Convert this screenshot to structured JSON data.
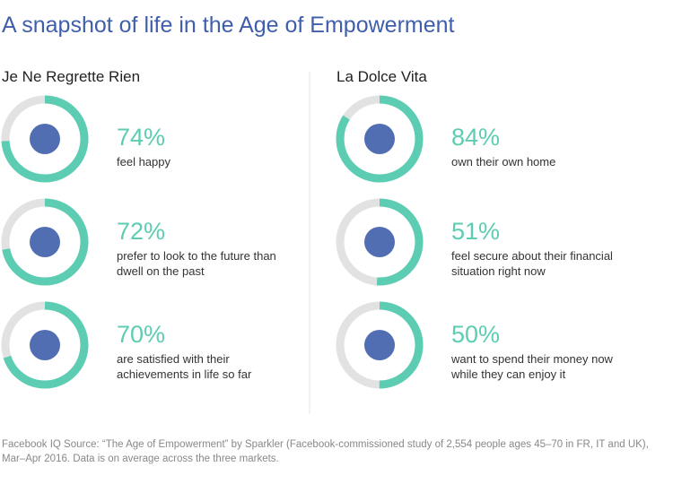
{
  "title": "A snapshot of life in the Age of Empowerment",
  "source": "Facebook IQ Source: “The Age of Empowerment” by Sparkler (Facebook-commissioned study of 2,554 people ages 45–70 in FR, IT and UK), Mar–Apr 2016. Data is on average across the three markets.",
  "chart_data": [
    {
      "type": "donut",
      "title": "Je Ne Regrette Rien",
      "categories": [
        "feel happy",
        "prefer to look to the future than dwell on the past",
        "are satisfied with their achievements in life so far"
      ],
      "values": [
        74,
        72,
        70
      ],
      "value_labels": [
        "74%",
        "72%",
        "70%"
      ],
      "color": "#5ccdb2",
      "track_color": "#e2e2e2"
    },
    {
      "type": "donut",
      "title": "La Dolce Vita",
      "categories": [
        "own their own home",
        "feel secure about their financial situation right now",
        "want to spend their money now while they can enjoy it"
      ],
      "values": [
        84,
        51,
        50
      ],
      "value_labels": [
        "84%",
        "51%",
        "50%"
      ],
      "color": "#5ccdb2",
      "track_color": "#e2e2e2"
    }
  ]
}
